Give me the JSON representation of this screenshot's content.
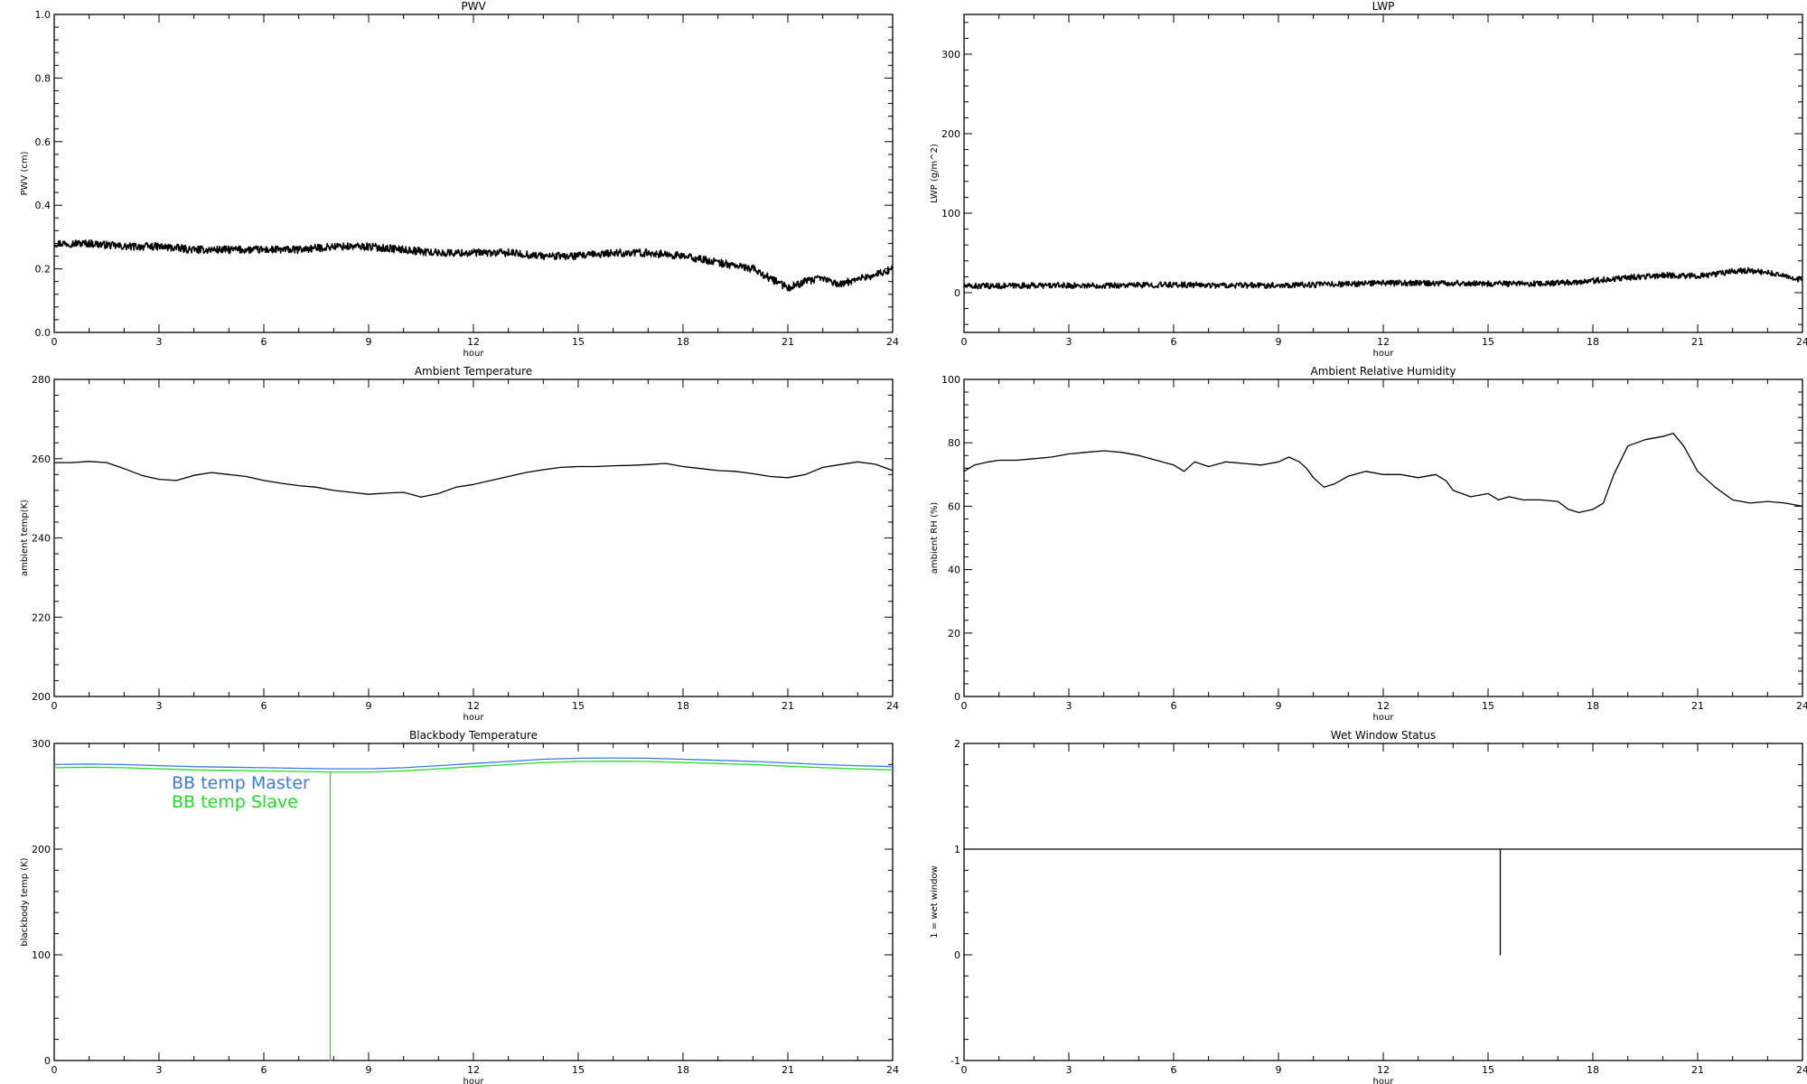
{
  "chart_data": [
    {
      "type": "line",
      "title": "PWV",
      "xlabel": "hour",
      "ylabel": "PWV (cm)",
      "xlim": [
        0,
        24
      ],
      "ylim": [
        0.0,
        1.0
      ],
      "x_ticks": [
        0,
        3,
        6,
        9,
        12,
        15,
        18,
        21,
        24
      ],
      "y_ticks": [
        0.0,
        0.2,
        0.4,
        0.6,
        0.8,
        1.0
      ],
      "y_tick_labels": [
        "0.0",
        "0.2",
        "0.4",
        "0.6",
        "0.8",
        "1.0"
      ],
      "x_tick_labels": [
        "0",
        "3",
        "6",
        "9",
        "12",
        "15",
        "18",
        "21",
        "24"
      ],
      "series": [
        {
          "color": "#000000",
          "noisy": true,
          "x": [
            0,
            1,
            2,
            3,
            4,
            5,
            6,
            7,
            8,
            9,
            10,
            11,
            12,
            13,
            14,
            15,
            16,
            17,
            18,
            19,
            19.5,
            20,
            20.5,
            21,
            21.5,
            22,
            22.5,
            23,
            23.5,
            24
          ],
          "y": [
            0.28,
            0.28,
            0.27,
            0.27,
            0.26,
            0.26,
            0.26,
            0.26,
            0.27,
            0.27,
            0.26,
            0.25,
            0.25,
            0.25,
            0.24,
            0.24,
            0.25,
            0.25,
            0.24,
            0.22,
            0.21,
            0.2,
            0.17,
            0.14,
            0.16,
            0.17,
            0.15,
            0.17,
            0.18,
            0.2
          ]
        }
      ]
    },
    {
      "type": "line",
      "title": "LWP",
      "xlabel": "hour",
      "ylabel": "LWP (g/m^2)",
      "xlim": [
        0,
        24
      ],
      "ylim": [
        -50,
        350
      ],
      "x_ticks": [
        0,
        3,
        6,
        9,
        12,
        15,
        18,
        21,
        24
      ],
      "y_ticks": [
        0,
        100,
        200,
        300
      ],
      "y_tick_labels": [
        "0",
        "100",
        "200",
        "300"
      ],
      "x_tick_labels": [
        "0",
        "3",
        "6",
        "9",
        "12",
        "15",
        "18",
        "21",
        "24"
      ],
      "series": [
        {
          "color": "#000000",
          "noisy": true,
          "x": [
            0,
            2,
            4,
            6,
            8,
            10,
            12,
            14,
            16,
            17,
            18,
            19,
            20,
            21,
            21.5,
            22,
            22.5,
            23,
            24
          ],
          "y": [
            8,
            9,
            9,
            10,
            9,
            10,
            12,
            12,
            11,
            12,
            15,
            19,
            22,
            21,
            23,
            27,
            28,
            25,
            16
          ]
        }
      ]
    },
    {
      "type": "line",
      "title": "Ambient Temperature",
      "xlabel": "hour",
      "ylabel": "ambient temp(K)",
      "xlim": [
        0,
        24
      ],
      "ylim": [
        200,
        280
      ],
      "x_ticks": [
        0,
        3,
        6,
        9,
        12,
        15,
        18,
        21,
        24
      ],
      "y_ticks": [
        200,
        220,
        240,
        260,
        280
      ],
      "y_tick_labels": [
        "200",
        "220",
        "240",
        "260",
        "280"
      ],
      "x_tick_labels": [
        "0",
        "3",
        "6",
        "9",
        "12",
        "15",
        "18",
        "21",
        "24"
      ],
      "series": [
        {
          "color": "#000000",
          "noisy": false,
          "x": [
            0,
            0.5,
            1,
            1.5,
            2,
            2.5,
            3,
            3.5,
            4,
            4.5,
            5,
            5.5,
            6,
            6.5,
            7,
            7.5,
            8,
            8.5,
            9,
            9.5,
            10,
            10.5,
            11,
            11.5,
            12,
            12.5,
            13,
            13.5,
            14,
            14.5,
            15,
            15.5,
            16,
            16.5,
            17,
            17.5,
            18,
            18.5,
            19,
            19.5,
            20,
            20.5,
            21,
            21.5,
            22,
            22.5,
            23,
            23.5,
            24
          ],
          "y": [
            259,
            259,
            259.3,
            259,
            257.5,
            255.8,
            254.8,
            254.5,
            255.8,
            256.5,
            256,
            255.5,
            254.5,
            253.8,
            253.2,
            252.8,
            252,
            251.5,
            251,
            251.3,
            251.5,
            250.3,
            251.2,
            252.8,
            253.5,
            254.5,
            255.5,
            256.5,
            257.2,
            257.8,
            258,
            258,
            258.2,
            258.3,
            258.5,
            258.8,
            258,
            257.5,
            257,
            256.8,
            256.2,
            255.5,
            255.2,
            256,
            257.8,
            258.5,
            259.2,
            258.6,
            257
          ]
        }
      ]
    },
    {
      "type": "line",
      "title": "Ambient Relative Humidity",
      "xlabel": "hour",
      "ylabel": "ambient RH (%)",
      "xlim": [
        0,
        24
      ],
      "ylim": [
        0,
        100
      ],
      "x_ticks": [
        0,
        3,
        6,
        9,
        12,
        15,
        18,
        21,
        24
      ],
      "y_ticks": [
        0,
        20,
        40,
        60,
        80,
        100
      ],
      "y_tick_labels": [
        "0",
        "20",
        "40",
        "60",
        "80",
        "100"
      ],
      "x_tick_labels": [
        "0",
        "3",
        "6",
        "9",
        "12",
        "15",
        "18",
        "21",
        "24"
      ],
      "series": [
        {
          "color": "#000000",
          "noisy": false,
          "x": [
            0,
            0.3,
            0.7,
            1,
            1.5,
            2,
            2.5,
            3,
            3.5,
            4,
            4.5,
            5,
            5.5,
            6,
            6.3,
            6.6,
            7,
            7.5,
            8,
            8.5,
            9,
            9.3,
            9.6,
            9.8,
            10,
            10.3,
            10.6,
            11,
            11.5,
            12,
            12.5,
            13,
            13.5,
            13.8,
            14,
            14.5,
            15,
            15.3,
            15.6,
            16,
            16.5,
            17,
            17.3,
            17.6,
            18,
            18.3,
            18.6,
            19,
            19.5,
            20,
            20.3,
            20.6,
            21,
            21.5,
            22,
            22.5,
            23,
            23.5,
            24
          ],
          "y": [
            71,
            73,
            74,
            74.5,
            74.5,
            75,
            75.5,
            76.5,
            77,
            77.5,
            77,
            76,
            74.5,
            73,
            71,
            74,
            72.5,
            74,
            73.5,
            73,
            74,
            75.5,
            74,
            72,
            69,
            66,
            67,
            69.5,
            71,
            70,
            70,
            69,
            70,
            68,
            65,
            63,
            64,
            62,
            63,
            62,
            62,
            61.5,
            59,
            58,
            59,
            61,
            70,
            79,
            81,
            82,
            83,
            79,
            71,
            66,
            62,
            61,
            61.5,
            61,
            60
          ]
        }
      ]
    },
    {
      "type": "line",
      "title": "Blackbody Temperature",
      "xlabel": "hour",
      "ylabel": "blackbody temp (K)",
      "xlim": [
        0,
        24
      ],
      "ylim": [
        0,
        300
      ],
      "x_ticks": [
        0,
        3,
        6,
        9,
        12,
        15,
        18,
        21,
        24
      ],
      "y_ticks": [
        0,
        100,
        200,
        300
      ],
      "y_tick_labels": [
        "0",
        "100",
        "200",
        "300"
      ],
      "x_tick_labels": [
        "0",
        "3",
        "6",
        "9",
        "12",
        "15",
        "18",
        "21",
        "24"
      ],
      "legend_position": "top-left",
      "series": [
        {
          "name": "BB temp Master",
          "color": "#3b7be0",
          "noisy": false,
          "x": [
            0,
            1,
            2,
            3,
            4,
            5,
            6,
            7,
            8,
            9,
            10,
            11,
            12,
            13,
            14,
            15,
            16,
            17,
            18,
            19,
            20,
            21,
            22,
            23,
            24
          ],
          "y": [
            280,
            280.5,
            280,
            279,
            278,
            277.5,
            277,
            276.5,
            276,
            276,
            277,
            279,
            281,
            283,
            285,
            286,
            286.2,
            286,
            285,
            284,
            283,
            281.5,
            280,
            279,
            278
          ]
        },
        {
          "name": "BB temp Slave",
          "color": "#22dd22",
          "noisy": false,
          "x": [
            0,
            1,
            2,
            3,
            4,
            5,
            6,
            7,
            7.9,
            7.9,
            7.9,
            8,
            9,
            10,
            11,
            12,
            13,
            14,
            15,
            16,
            17,
            18,
            19,
            20,
            21,
            22,
            23,
            24
          ],
          "y": [
            277,
            277.5,
            277,
            276,
            275,
            274.5,
            274,
            273.5,
            273,
            0,
            273,
            273,
            273,
            274,
            276,
            278,
            280,
            282,
            283,
            283.2,
            283,
            282,
            281,
            280,
            278.5,
            277,
            276,
            275
          ]
        }
      ]
    },
    {
      "type": "line",
      "title": "Wet Window Status",
      "xlabel": "hour",
      "ylabel": "1 = wet window",
      "xlim": [
        0,
        24
      ],
      "ylim": [
        -1,
        2
      ],
      "x_ticks": [
        0,
        3,
        6,
        9,
        12,
        15,
        18,
        21,
        24
      ],
      "y_ticks": [
        -1,
        0,
        1,
        2
      ],
      "y_tick_labels": [
        "-1",
        "0",
        "1",
        "2"
      ],
      "x_tick_labels": [
        "0",
        "3",
        "6",
        "9",
        "12",
        "15",
        "18",
        "21",
        "24"
      ],
      "series": [
        {
          "color": "#000000",
          "noisy": false,
          "x": [
            0,
            15.35,
            15.35,
            15.35,
            24
          ],
          "y": [
            1,
            1,
            0,
            1,
            1
          ]
        }
      ]
    }
  ]
}
